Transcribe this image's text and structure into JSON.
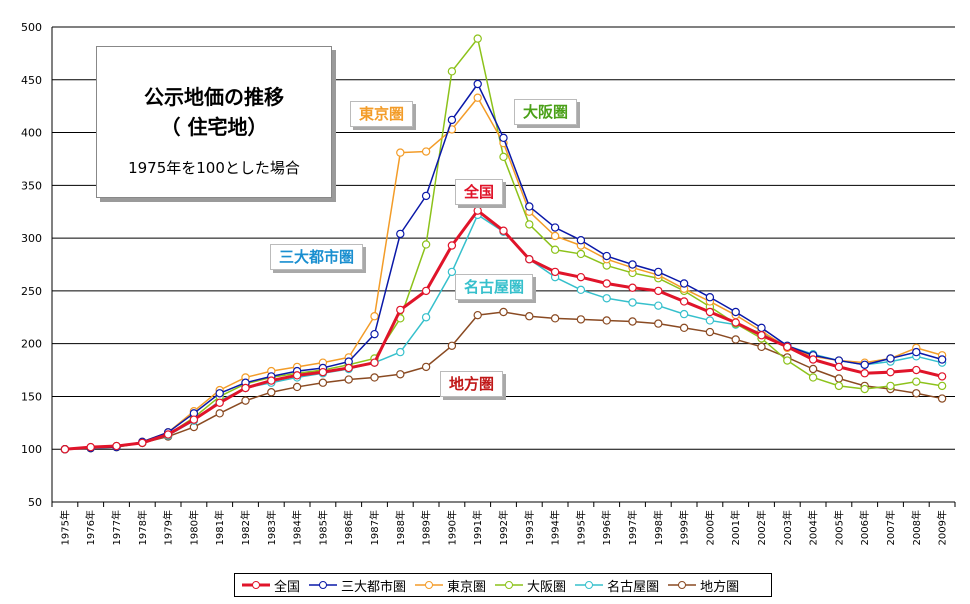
{
  "chart_data": {
    "type": "line",
    "title": "公示地価の推移",
    "subtitle": "（ 住宅地）",
    "note": "1975年を100とした場合",
    "xlabel": "",
    "ylabel": "",
    "ylim": [
      50,
      500
    ],
    "yticks": [
      50,
      100,
      150,
      200,
      250,
      300,
      350,
      400,
      450,
      500
    ],
    "grid": true,
    "legend_position": "bottom",
    "x": [
      "1975年",
      "1976年",
      "1977年",
      "1978年",
      "1979年",
      "1980年",
      "1981年",
      "1982年",
      "1983年",
      "1984年",
      "1985年",
      "1986年",
      "1987年",
      "1988年",
      "1989年",
      "1990年",
      "1991年",
      "1992年",
      "1993年",
      "1994年",
      "1995年",
      "1996年",
      "1997年",
      "1998年",
      "1999年",
      "2000年",
      "2001年",
      "2002年",
      "2003年",
      "2004年",
      "2005年",
      "2006年",
      "2007年",
      "2008年",
      "2009年"
    ],
    "series": [
      {
        "name": "全国",
        "color": "#e0142a",
        "bold": true,
        "values": [
          100,
          102,
          103,
          106,
          114,
          128,
          144,
          158,
          165,
          170,
          173,
          177,
          182,
          232,
          250,
          293,
          326,
          307,
          280,
          268,
          263,
          257,
          253,
          250,
          240,
          230,
          220,
          208,
          197,
          185,
          178,
          172,
          173,
          175,
          169
        ]
      },
      {
        "name": "三大都市圏",
        "color": "#0a18a8",
        "bold": false,
        "values": [
          100,
          101,
          102,
          107,
          116,
          134,
          153,
          163,
          169,
          174,
          177,
          183,
          209,
          304,
          340,
          412,
          446,
          395,
          330,
          310,
          298,
          283,
          275,
          268,
          257,
          244,
          230,
          215,
          198,
          189,
          184,
          180,
          186,
          192,
          185
        ]
      },
      {
        "name": "東京圏",
        "color": "#f39c28",
        "bold": false,
        "values": [
          100,
          101,
          102,
          107,
          116,
          136,
          156,
          168,
          174,
          178,
          182,
          187,
          226,
          381,
          382,
          403,
          433,
          390,
          325,
          302,
          293,
          280,
          272,
          265,
          252,
          240,
          227,
          212,
          196,
          188,
          184,
          182,
          186,
          196,
          189
        ]
      },
      {
        "name": "大阪圏",
        "color": "#8cc21a",
        "bold": false,
        "values": [
          100,
          101,
          102,
          106,
          114,
          130,
          150,
          162,
          168,
          172,
          175,
          180,
          186,
          224,
          294,
          458,
          489,
          377,
          313,
          289,
          285,
          274,
          267,
          262,
          250,
          235,
          219,
          205,
          184,
          168,
          160,
          157,
          160,
          164,
          160
        ]
      },
      {
        "name": "名古屋圏",
        "color": "#36c0cc",
        "bold": false,
        "values": [
          100,
          101,
          102,
          106,
          113,
          127,
          146,
          158,
          163,
          168,
          172,
          176,
          182,
          192,
          225,
          268,
          322,
          306,
          280,
          263,
          251,
          243,
          239,
          236,
          228,
          222,
          218,
          210,
          198,
          190,
          184,
          180,
          183,
          188,
          182
        ]
      },
      {
        "name": "地方圏",
        "color": "#8a4a22",
        "bold": false,
        "values": [
          100,
          101,
          103,
          106,
          112,
          121,
          134,
          146,
          154,
          159,
          163,
          166,
          168,
          171,
          178,
          198,
          227,
          230,
          226,
          224,
          223,
          222,
          221,
          219,
          215,
          211,
          204,
          197,
          187,
          176,
          167,
          160,
          157,
          153,
          148
        ]
      }
    ],
    "annotations": [
      {
        "text": "東京圏",
        "color": "#f39c28"
      },
      {
        "text": "大阪圏",
        "color": "#4aa018"
      },
      {
        "text": "全国",
        "color": "#e0142a"
      },
      {
        "text": "三大都市圏",
        "color": "#1a8fd0"
      },
      {
        "text": "名古屋圏",
        "color": "#36c0cc"
      },
      {
        "text": "地方圏",
        "color": "#c01818"
      }
    ]
  }
}
